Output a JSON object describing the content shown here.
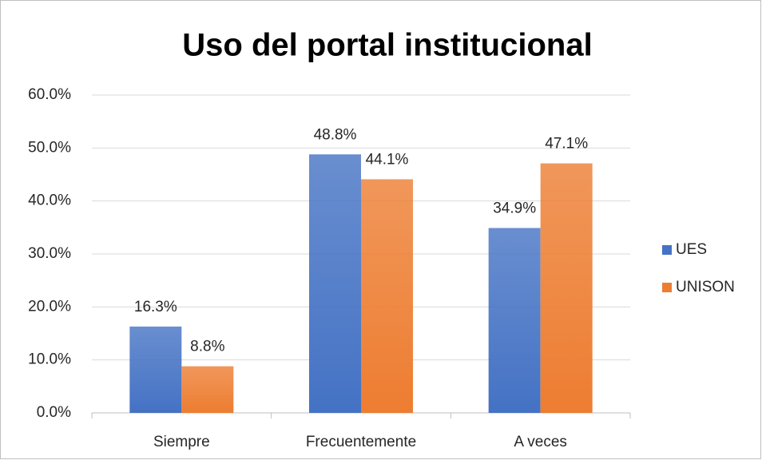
{
  "chart_data": {
    "type": "bar",
    "title": "Uso del portal institucional",
    "categories": [
      "Siempre",
      "Frecuentemente",
      "A veces"
    ],
    "series": [
      {
        "name": "UES",
        "color": "#4472c4",
        "values": [
          16.3,
          48.8,
          34.9
        ],
        "value_labels": [
          "16.3%",
          "48.8%",
          "34.9%"
        ]
      },
      {
        "name": "UNISON",
        "color": "#ed7d31",
        "values": [
          8.8,
          44.1,
          47.1
        ],
        "value_labels": [
          "8.8%",
          "44.1%",
          "47.1%"
        ]
      }
    ],
    "ylim": [
      0,
      60
    ],
    "yticks": [
      {
        "value": 0,
        "label": "0.0%"
      },
      {
        "value": 10,
        "label": "10.0%"
      },
      {
        "value": 20,
        "label": "20.0%"
      },
      {
        "value": 30,
        "label": "30.0%"
      },
      {
        "value": 40,
        "label": "40.0%"
      },
      {
        "value": 50,
        "label": "50.0%"
      },
      {
        "value": 60,
        "label": "60.0%"
      }
    ],
    "grid": true,
    "legend": "right"
  }
}
